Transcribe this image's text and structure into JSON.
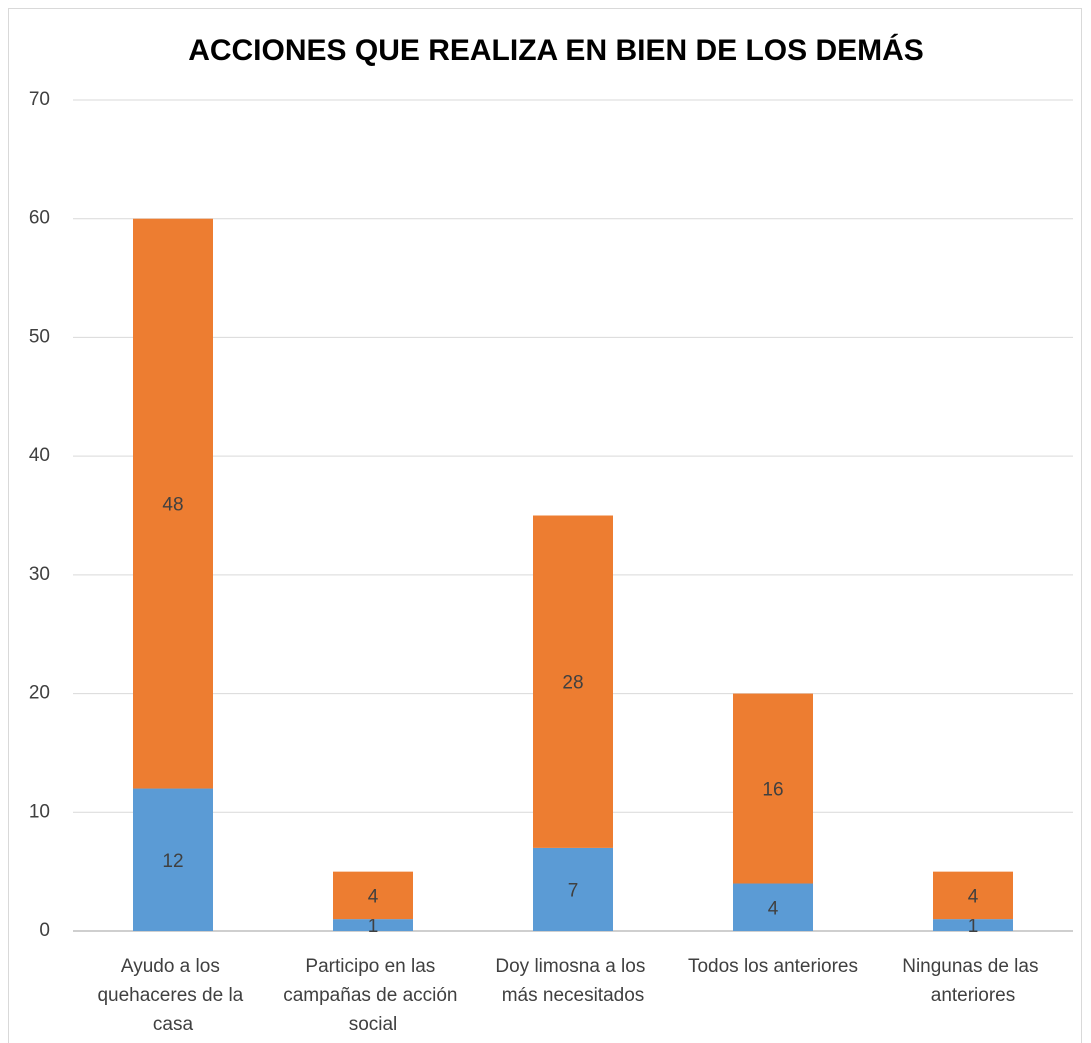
{
  "chart_data": {
    "type": "stacked_bar",
    "title": "ACCIONES QUE REALIZA EN BIEN DE LOS DEMÁS",
    "categories": [
      "Ayudo a los quehaceres de la casa",
      "Participo en las campañas de acción social",
      "Doy limosna a los más necesitados",
      "Todos los anteriores",
      "Ningunas de las anteriores"
    ],
    "series": [
      {
        "color": "#5b9bd5",
        "values": [
          12,
          1,
          7,
          4,
          1
        ]
      },
      {
        "color": "#ed7d31",
        "values": [
          48,
          4,
          28,
          16,
          4
        ]
      }
    ],
    "ylim": [
      0,
      70
    ],
    "yticks": [
      0,
      10,
      20,
      30,
      40,
      50,
      60,
      70
    ],
    "grid": true,
    "data_labels": true
  }
}
